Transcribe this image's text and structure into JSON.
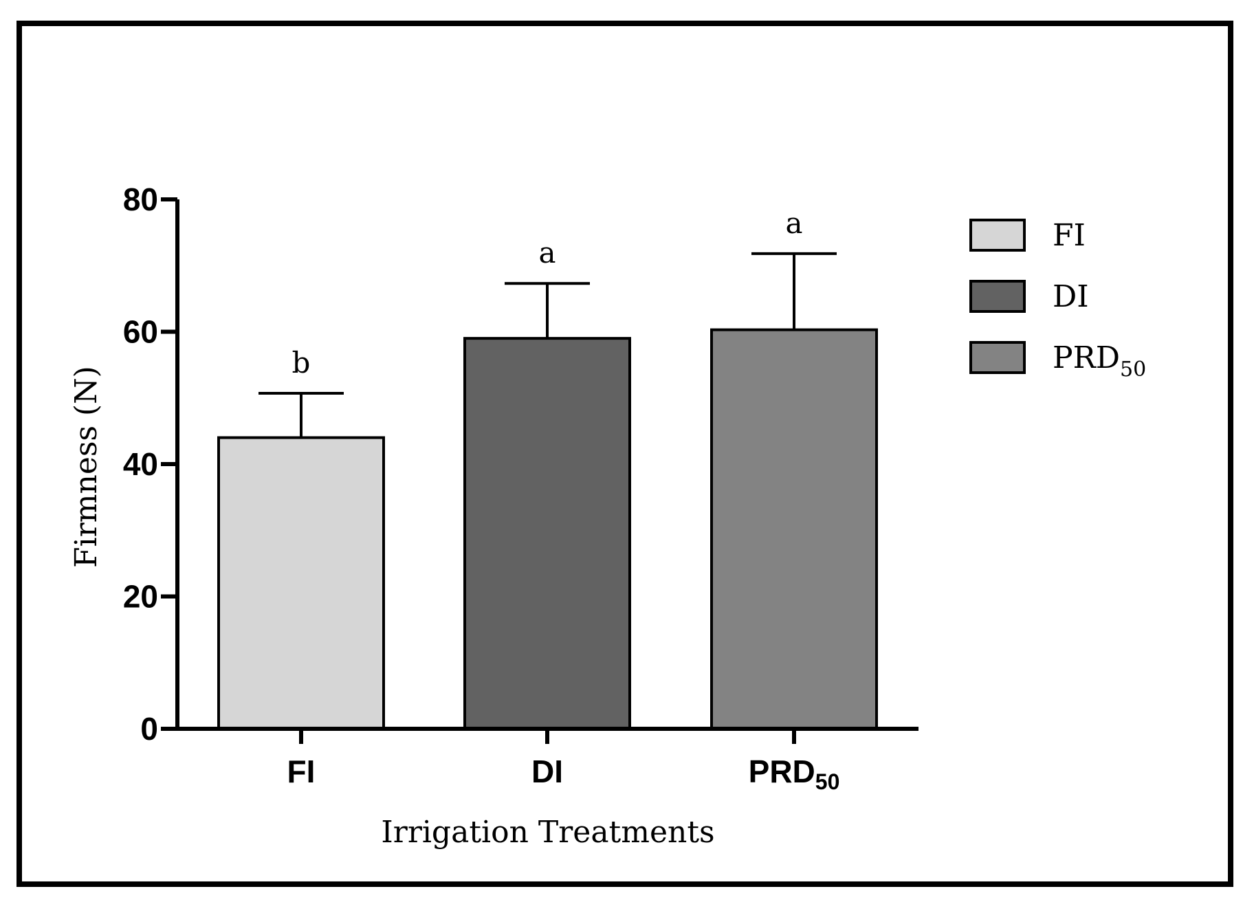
{
  "chart_data": {
    "type": "bar",
    "title": "",
    "xlabel": "Irrigation Treatments",
    "ylabel": "Firmness (N)",
    "ylim": [
      0,
      80
    ],
    "yticks": [
      0,
      20,
      40,
      60,
      80
    ],
    "categories": [
      {
        "name": "FI",
        "base": "FI",
        "sub": ""
      },
      {
        "name": "DI",
        "base": "DI",
        "sub": ""
      },
      {
        "name": "PRD50",
        "base": "PRD",
        "sub": "50"
      }
    ],
    "values": [
      44,
      59,
      60.3
    ],
    "errors": [
      6.7,
      8.3,
      11.5
    ],
    "significance": [
      "b",
      "a",
      "a"
    ],
    "colors": [
      "#d6d6d6",
      "#626262",
      "#838383"
    ],
    "legend": {
      "position": "top-right",
      "entries": [
        {
          "base": "FI",
          "sub": "",
          "color": "#d6d6d6"
        },
        {
          "base": "DI",
          "sub": "",
          "color": "#626262"
        },
        {
          "base": "PRD",
          "sub": "50",
          "color": "#838383"
        }
      ]
    }
  }
}
